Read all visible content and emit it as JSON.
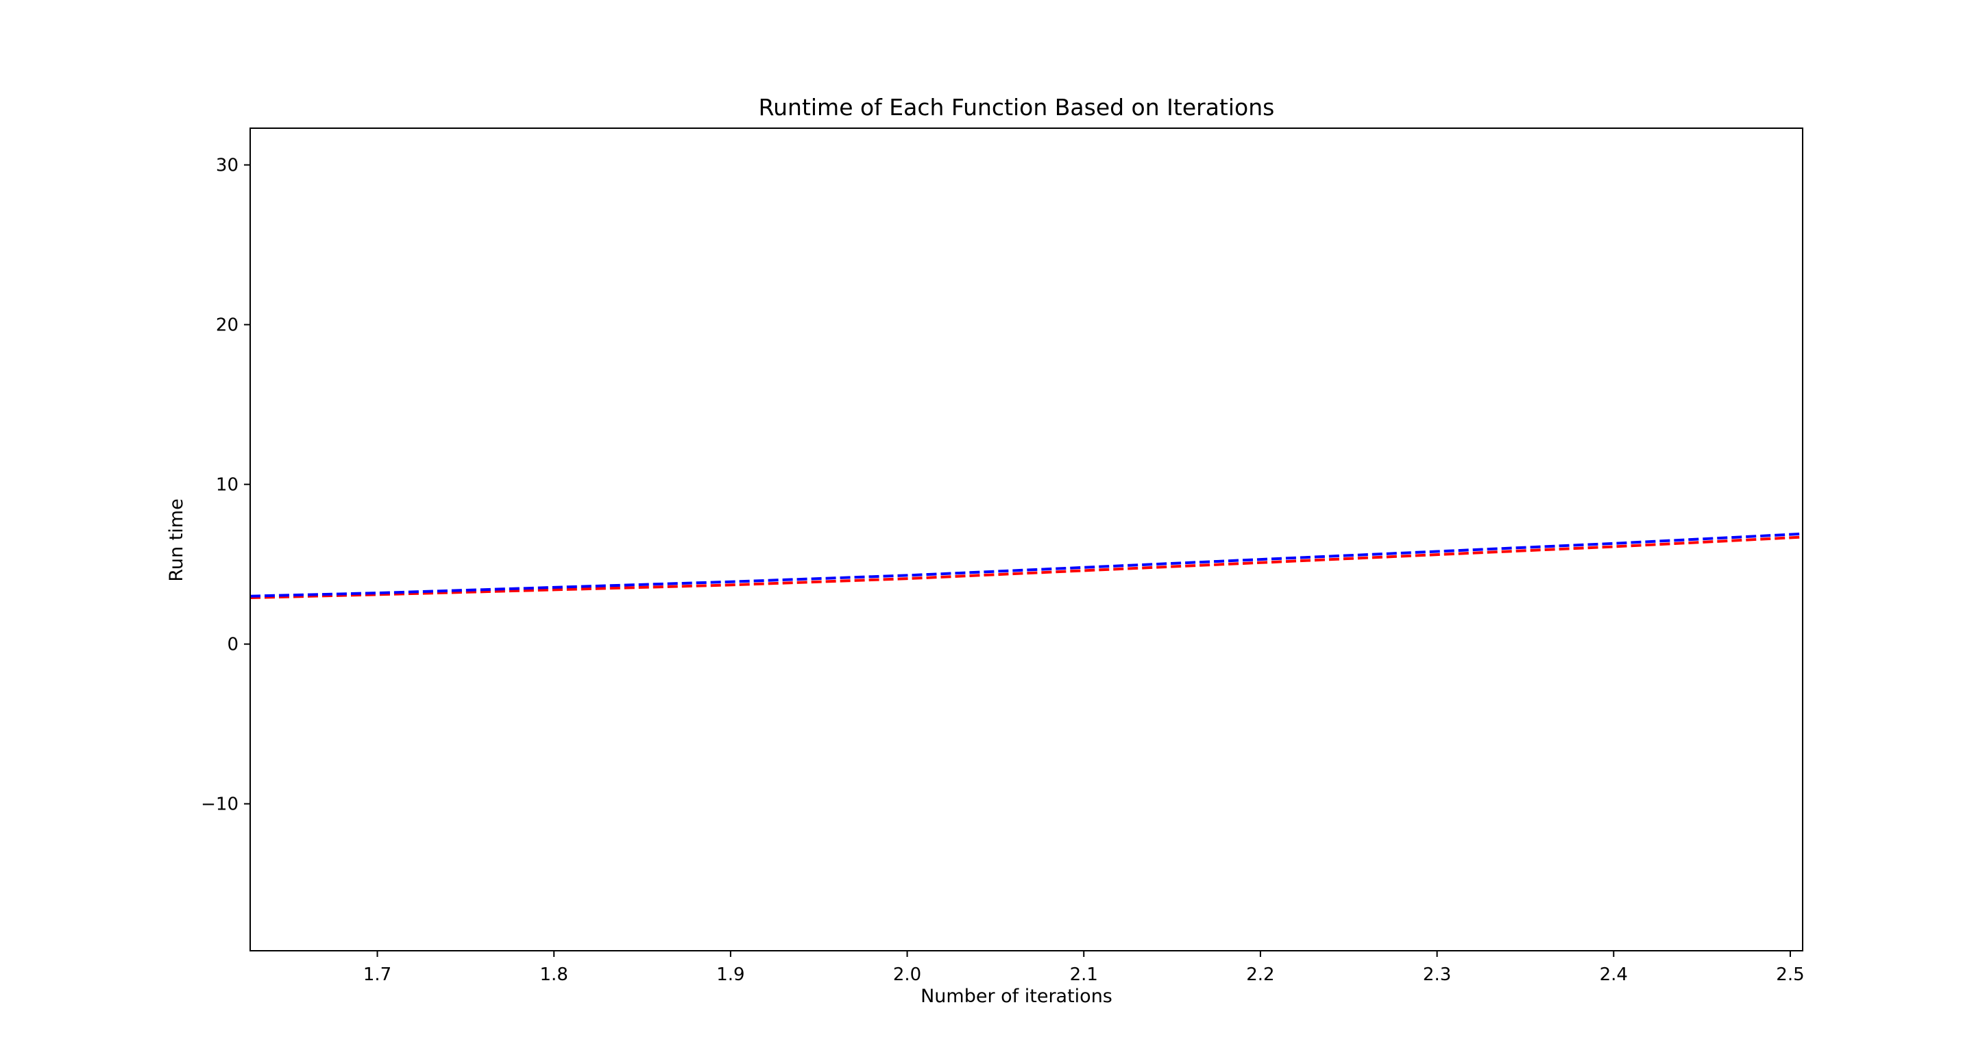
{
  "chart_data": {
    "type": "line",
    "title": "Runtime of Each Function Based on Iterations",
    "xlabel": "Number of iterations",
    "ylabel": "Run time",
    "xlim": [
      1.628,
      2.507
    ],
    "ylim": [
      -19.2,
      32.3
    ],
    "grid": false,
    "legend": "none",
    "x_ticks": [
      "1.7",
      "1.8",
      "1.9",
      "2.0",
      "2.1",
      "2.2",
      "2.3",
      "2.4",
      "2.5"
    ],
    "y_ticks": [
      "30",
      "20",
      "10",
      "0",
      "−10"
    ],
    "series": [
      {
        "color": "#ff0000",
        "line_style": "dashed",
        "x": [
          1.628,
          1.7,
          1.8,
          1.9,
          2.0,
          2.1,
          2.2,
          2.3,
          2.4,
          2.507
        ],
        "y": [
          2.9,
          3.1,
          3.4,
          3.7,
          4.1,
          4.6,
          5.1,
          5.6,
          6.1,
          6.7
        ]
      },
      {
        "color": "#0000ff",
        "line_style": "dashed",
        "x": [
          1.628,
          1.7,
          1.8,
          1.9,
          2.0,
          2.1,
          2.2,
          2.3,
          2.4,
          2.507
        ],
        "y": [
          3.0,
          3.2,
          3.55,
          3.9,
          4.3,
          4.8,
          5.3,
          5.8,
          6.3,
          6.9
        ]
      }
    ]
  }
}
